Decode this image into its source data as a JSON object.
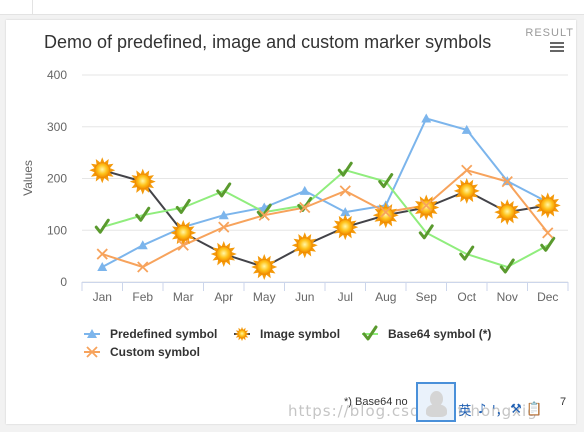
{
  "result_label": "RESULT",
  "footnote": "*) Base64 no",
  "footnote_tail": "7",
  "watermark": "https://blog.csdn.net/hongxig",
  "ime": {
    "lang": "英",
    "icons": [
      "moon-icon",
      "punctuation-icon",
      "wrench-icon",
      "clipboard-icon"
    ],
    "glyphs": [
      "♪",
      "'，",
      "⚒",
      "📋"
    ]
  },
  "chart_data": {
    "type": "line",
    "title": "Demo of predefined, image and custom marker symbols",
    "xlabel": "",
    "ylabel": "Values",
    "categories": [
      "Jan",
      "Feb",
      "Mar",
      "Apr",
      "May",
      "Jun",
      "Jul",
      "Aug",
      "Sep",
      "Oct",
      "Nov",
      "Dec"
    ],
    "ylim": [
      0,
      400
    ],
    "yticks": [
      0,
      100,
      200,
      300,
      400
    ],
    "grid": true,
    "legend_position": "bottom-left",
    "series": [
      {
        "name": "Predefined symbol",
        "color": "#7cb5ec",
        "marker": "triangle",
        "values": [
          29,
          71,
          106,
          129,
          144,
          176,
          135,
          148,
          316,
          294,
          195,
          154
        ]
      },
      {
        "name": "Image symbol",
        "color": "#434348",
        "marker": "sun",
        "values": [
          216,
          194,
          95,
          54,
          29,
          71,
          106,
          129,
          144,
          176,
          135,
          148
        ]
      },
      {
        "name": "Base64 symbol (*)",
        "color": "#90ed7d",
        "marker": "check",
        "values": [
          106,
          129,
          144,
          176,
          135,
          148,
          216,
          194,
          95,
          54,
          29,
          71
        ]
      },
      {
        "name": "Custom symbol",
        "color": "#f7a35c",
        "marker": "cross",
        "values": [
          54,
          29,
          71,
          106,
          129,
          144,
          176,
          135,
          148,
          216,
          194,
          95
        ]
      }
    ]
  }
}
